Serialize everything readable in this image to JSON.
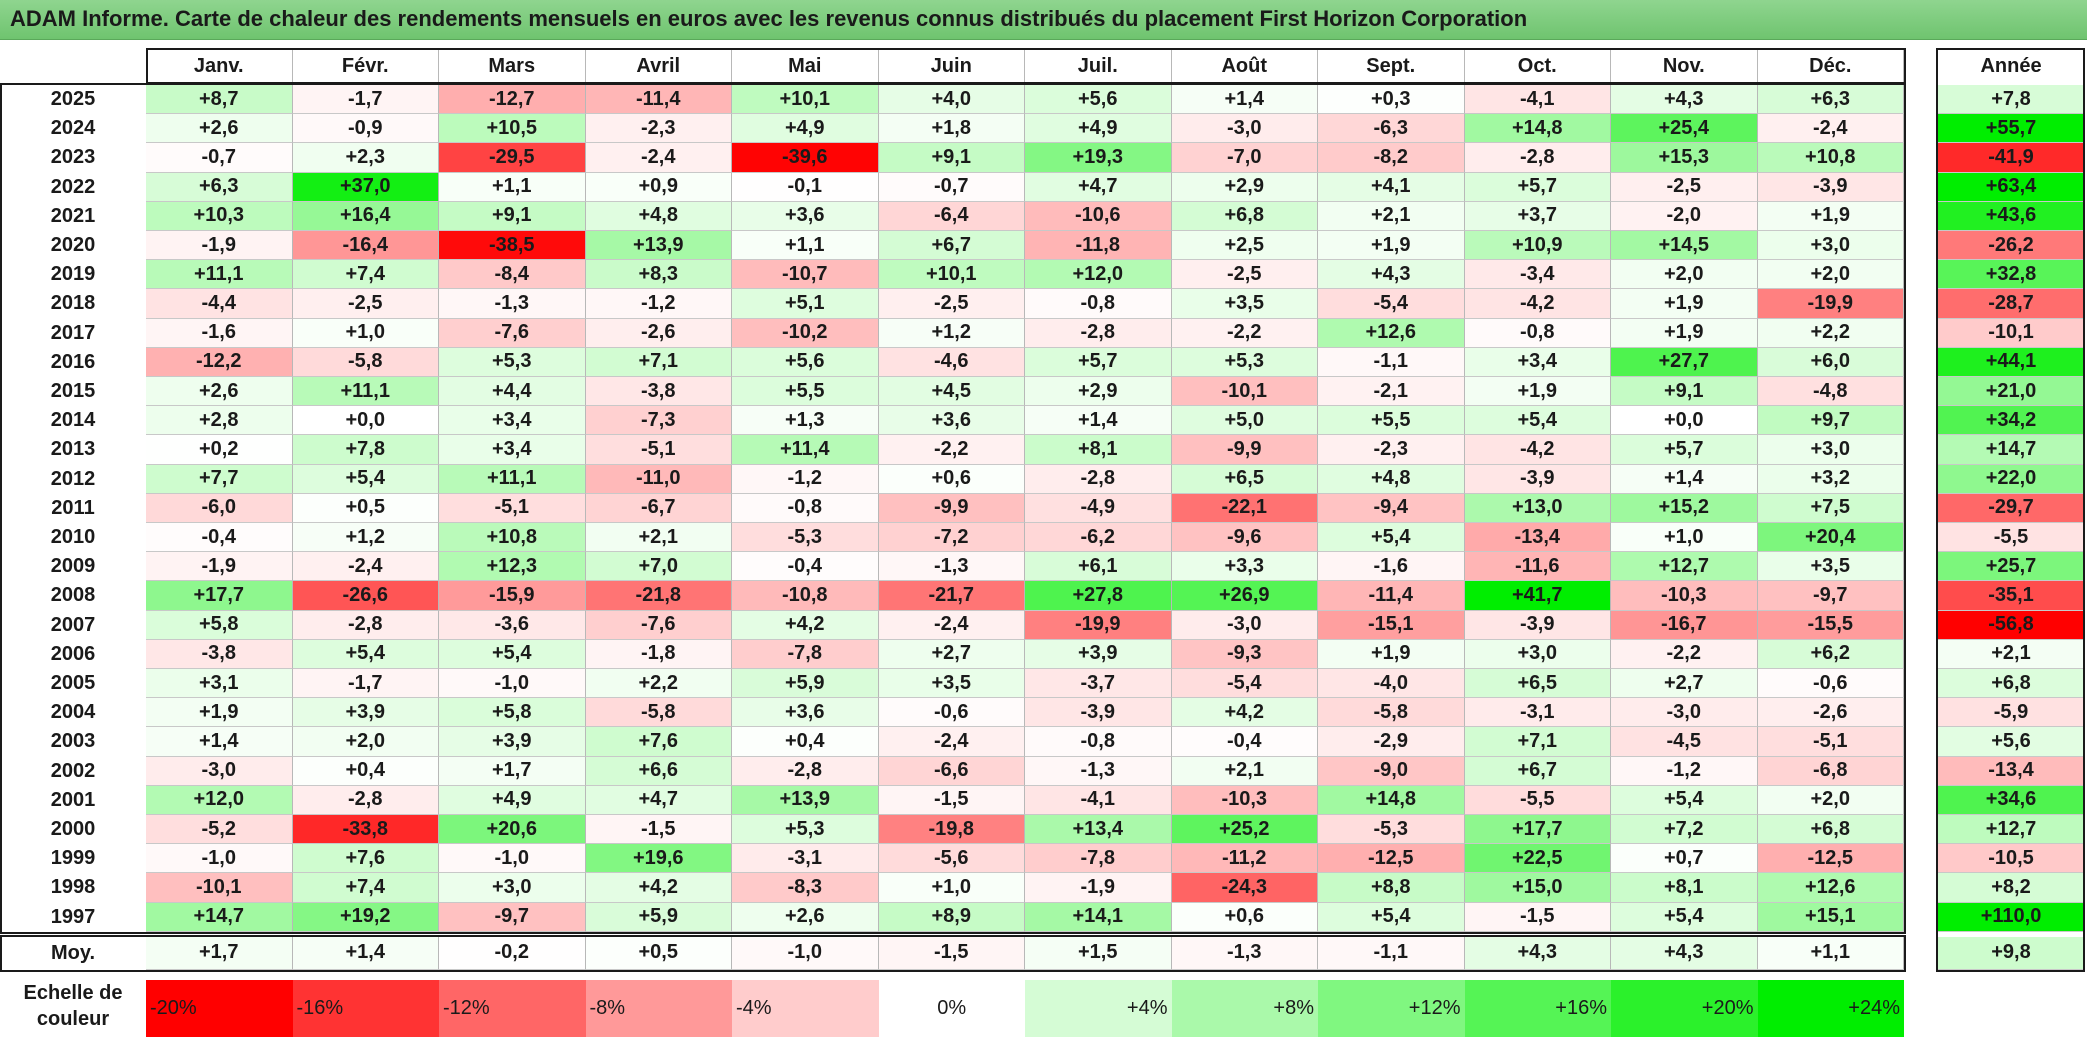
{
  "title": "ADAM Informe. Carte de chaleur des rendements mensuels en euros avec les revenus connus distribués du placement First Horizon Corporation",
  "chart_data": {
    "type": "heatmap",
    "title": "ADAM Informe. Carte de chaleur des rendements mensuels en euros avec les revenus connus distribués du placement First Horizon Corporation",
    "columns": [
      "Janv.",
      "Févr.",
      "Mars",
      "Avril",
      "Mai",
      "Juin",
      "Juil.",
      "Août",
      "Sept.",
      "Oct.",
      "Nov.",
      "Déc."
    ],
    "year_header": "Année",
    "rows": [
      {
        "year": "2025",
        "values": [
          "+8,7",
          "-1,7",
          "-12,7",
          "-11,4",
          "+10,1",
          "+4,0",
          "+5,6",
          "+1,4",
          "+0,3",
          "-4,1",
          "+4,3",
          "+6,3"
        ],
        "annual": "+7,8"
      },
      {
        "year": "2024",
        "values": [
          "+2,6",
          "-0,9",
          "+10,5",
          "-2,3",
          "+4,9",
          "+1,8",
          "+4,9",
          "-3,0",
          "-6,3",
          "+14,8",
          "+25,4",
          "-2,4"
        ],
        "annual": "+55,7"
      },
      {
        "year": "2023",
        "values": [
          "-0,7",
          "+2,3",
          "-29,5",
          "-2,4",
          "-39,6",
          "+9,1",
          "+19,3",
          "-7,0",
          "-8,2",
          "-2,8",
          "+15,3",
          "+10,8"
        ],
        "annual": "-41,9"
      },
      {
        "year": "2022",
        "values": [
          "+6,3",
          "+37,0",
          "+1,1",
          "+0,9",
          "-0,1",
          "-0,7",
          "+4,7",
          "+2,9",
          "+4,1",
          "+5,7",
          "-2,5",
          "-3,9"
        ],
        "annual": "+63,4"
      },
      {
        "year": "2021",
        "values": [
          "+10,3",
          "+16,4",
          "+9,1",
          "+4,8",
          "+3,6",
          "-6,4",
          "-10,6",
          "+6,8",
          "+2,1",
          "+3,7",
          "-2,0",
          "+1,9"
        ],
        "annual": "+43,6"
      },
      {
        "year": "2020",
        "values": [
          "-1,9",
          "-16,4",
          "-38,5",
          "+13,9",
          "+1,1",
          "+6,7",
          "-11,8",
          "+2,5",
          "+1,9",
          "+10,9",
          "+14,5",
          "+3,0"
        ],
        "annual": "-26,2"
      },
      {
        "year": "2019",
        "values": [
          "+11,1",
          "+7,4",
          "-8,4",
          "+8,3",
          "-10,7",
          "+10,1",
          "+12,0",
          "-2,5",
          "+4,3",
          "-3,4",
          "+2,0",
          "+2,0"
        ],
        "annual": "+32,8"
      },
      {
        "year": "2018",
        "values": [
          "-4,4",
          "-2,5",
          "-1,3",
          "-1,2",
          "+5,1",
          "-2,5",
          "-0,8",
          "+3,5",
          "-5,4",
          "-4,2",
          "+1,9",
          "-19,9"
        ],
        "annual": "-28,7"
      },
      {
        "year": "2017",
        "values": [
          "-1,6",
          "+1,0",
          "-7,6",
          "-2,6",
          "-10,2",
          "+1,2",
          "-2,8",
          "-2,2",
          "+12,6",
          "-0,8",
          "+1,9",
          "+2,2"
        ],
        "annual": "-10,1"
      },
      {
        "year": "2016",
        "values": [
          "-12,2",
          "-5,8",
          "+5,3",
          "+7,1",
          "+5,6",
          "-4,6",
          "+5,7",
          "+5,3",
          "-1,1",
          "+3,4",
          "+27,7",
          "+6,0"
        ],
        "annual": "+44,1"
      },
      {
        "year": "2015",
        "values": [
          "+2,6",
          "+11,1",
          "+4,4",
          "-3,8",
          "+5,5",
          "+4,5",
          "+2,9",
          "-10,1",
          "-2,1",
          "+1,9",
          "+9,1",
          "-4,8"
        ],
        "annual": "+21,0"
      },
      {
        "year": "2014",
        "values": [
          "+2,8",
          "+0,0",
          "+3,4",
          "-7,3",
          "+1,3",
          "+3,6",
          "+1,4",
          "+5,0",
          "+5,5",
          "+5,4",
          "+0,0",
          "+9,7"
        ],
        "annual": "+34,2"
      },
      {
        "year": "2013",
        "values": [
          "+0,2",
          "+7,8",
          "+3,4",
          "-5,1",
          "+11,4",
          "-2,2",
          "+8,1",
          "-9,9",
          "-2,3",
          "-4,2",
          "+5,7",
          "+3,0"
        ],
        "annual": "+14,7"
      },
      {
        "year": "2012",
        "values": [
          "+7,7",
          "+5,4",
          "+11,1",
          "-11,0",
          "-1,2",
          "+0,6",
          "-2,8",
          "+6,5",
          "+4,8",
          "-3,9",
          "+1,4",
          "+3,2"
        ],
        "annual": "+22,0"
      },
      {
        "year": "2011",
        "values": [
          "-6,0",
          "+0,5",
          "-5,1",
          "-6,7",
          "-0,8",
          "-9,9",
          "-4,9",
          "-22,1",
          "-9,4",
          "+13,0",
          "+15,2",
          "+7,5"
        ],
        "annual": "-29,7"
      },
      {
        "year": "2010",
        "values": [
          "-0,4",
          "+1,2",
          "+10,8",
          "+2,1",
          "-5,3",
          "-7,2",
          "-6,2",
          "-9,6",
          "+5,4",
          "-13,4",
          "+1,0",
          "+20,4"
        ],
        "annual": "-5,5"
      },
      {
        "year": "2009",
        "values": [
          "-1,9",
          "-2,4",
          "+12,3",
          "+7,0",
          "-0,4",
          "-1,3",
          "+6,1",
          "+3,3",
          "-1,6",
          "-11,6",
          "+12,7",
          "+3,5"
        ],
        "annual": "+25,7"
      },
      {
        "year": "2008",
        "values": [
          "+17,7",
          "-26,6",
          "-15,9",
          "-21,8",
          "-10,8",
          "-21,7",
          "+27,8",
          "+26,9",
          "-11,4",
          "+41,7",
          "-10,3",
          "-9,7"
        ],
        "annual": "-35,1"
      },
      {
        "year": "2007",
        "values": [
          "+5,8",
          "-2,8",
          "-3,6",
          "-7,6",
          "+4,2",
          "-2,4",
          "-19,9",
          "-3,0",
          "-15,1",
          "-3,9",
          "-16,7",
          "-15,5"
        ],
        "annual": "-56,8"
      },
      {
        "year": "2006",
        "values": [
          "-3,8",
          "+5,4",
          "+5,4",
          "-1,8",
          "-7,8",
          "+2,7",
          "+3,9",
          "-9,3",
          "+1,9",
          "+3,0",
          "-2,2",
          "+6,2"
        ],
        "annual": "+2,1"
      },
      {
        "year": "2005",
        "values": [
          "+3,1",
          "-1,7",
          "-1,0",
          "+2,2",
          "+5,9",
          "+3,5",
          "-3,7",
          "-5,4",
          "-4,0",
          "+6,5",
          "+2,7",
          "-0,6"
        ],
        "annual": "+6,8"
      },
      {
        "year": "2004",
        "values": [
          "+1,9",
          "+3,9",
          "+5,8",
          "-5,8",
          "+3,6",
          "-0,6",
          "-3,9",
          "+4,2",
          "-5,8",
          "-3,1",
          "-3,0",
          "-2,6"
        ],
        "annual": "-5,9"
      },
      {
        "year": "2003",
        "values": [
          "+1,4",
          "+2,0",
          "+3,9",
          "+7,6",
          "+0,4",
          "-2,4",
          "-0,8",
          "-0,4",
          "-2,9",
          "+7,1",
          "-4,5",
          "-5,1"
        ],
        "annual": "+5,6"
      },
      {
        "year": "2002",
        "values": [
          "-3,0",
          "+0,4",
          "+1,7",
          "+6,6",
          "-2,8",
          "-6,6",
          "-1,3",
          "+2,1",
          "-9,0",
          "+6,7",
          "-1,2",
          "-6,8"
        ],
        "annual": "-13,4"
      },
      {
        "year": "2001",
        "values": [
          "+12,0",
          "-2,8",
          "+4,9",
          "+4,7",
          "+13,9",
          "-1,5",
          "-4,1",
          "-10,3",
          "+14,8",
          "-5,5",
          "+5,4",
          "+2,0"
        ],
        "annual": "+34,6"
      },
      {
        "year": "2000",
        "values": [
          "-5,2",
          "-33,8",
          "+20,6",
          "-1,5",
          "+5,3",
          "-19,8",
          "+13,4",
          "+25,2",
          "-5,3",
          "+17,7",
          "+7,2",
          "+6,8"
        ],
        "annual": "+12,7"
      },
      {
        "year": "1999",
        "values": [
          "-1,0",
          "+7,6",
          "-1,0",
          "+19,6",
          "-3,1",
          "-5,6",
          "-7,8",
          "-11,2",
          "-12,5",
          "+22,5",
          "+0,7",
          "-12,5"
        ],
        "annual": "-10,5"
      },
      {
        "year": "1998",
        "values": [
          "-10,1",
          "+7,4",
          "+3,0",
          "+4,2",
          "-8,3",
          "+1,0",
          "-1,9",
          "-24,3",
          "+8,8",
          "+15,0",
          "+8,1",
          "+12,6"
        ],
        "annual": "+8,2"
      },
      {
        "year": "1997",
        "values": [
          "+14,7",
          "+19,2",
          "-9,7",
          "+5,9",
          "+2,6",
          "+8,9",
          "+14,1",
          "+0,6",
          "+5,4",
          "-1,5",
          "+5,4",
          "+15,1"
        ],
        "annual": "+110,0"
      }
    ],
    "average": {
      "label": "Moy.",
      "values": [
        "+1,7",
        "+1,4",
        "-0,2",
        "+0,5",
        "-1,0",
        "-1,5",
        "+1,5",
        "-1,3",
        "-1,1",
        "+4,3",
        "+4,3",
        "+1,1"
      ],
      "annual": "+9,8"
    },
    "scale": {
      "label_line1": "Echelle de",
      "label_line2": "couleur",
      "stops": [
        "-20%",
        "-16%",
        "-12%",
        "-8%",
        "-4%",
        "0%",
        "+4%",
        "+8%",
        "+12%",
        "+16%",
        "+20%",
        "+24%"
      ]
    },
    "colors": {
      "negative_max": "#ff0000",
      "neutral": "#ffffff",
      "positive_max": "#00ee00"
    }
  }
}
